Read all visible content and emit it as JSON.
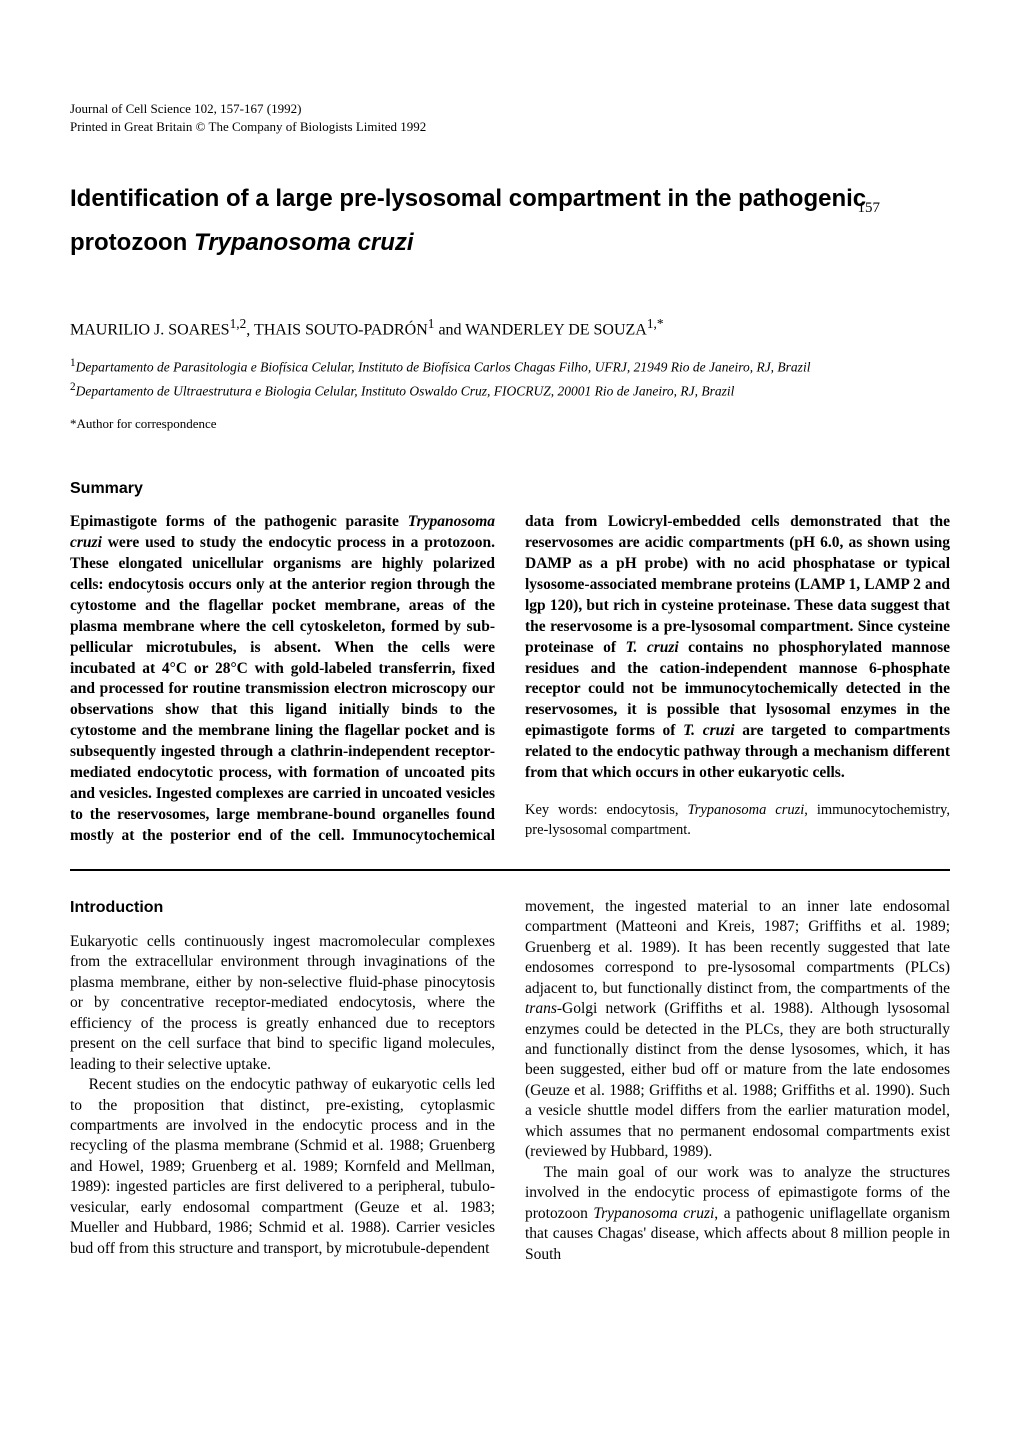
{
  "page_number": "157",
  "meta_line1": "Journal of Cell Science 102, 157-167 (1992)",
  "meta_line2": "Printed in Great Britain © The Company of Biologists Limited 1992",
  "title_pre": "Identification of a large pre-lysosomal compartment in the pathogenic protozoon ",
  "title_species": "Trypanosoma cruzi",
  "authors": "MAURILIO J. SOARES",
  "author_sup1": "1,2",
  "authors_mid": ", THAIS SOUTO-PADRÓN",
  "author_sup2": "1",
  "authors_join": " and WANDERLEY DE SOUZA",
  "author_sup3": "1,*",
  "affil1_sup": "1",
  "affil1": "Departamento de Parasitologia e Biofísica Celular, Instituto de Biofísica Carlos Chagas Filho, UFRJ, 21949 Rio de Janeiro, RJ, Brazil",
  "affil2_sup": "2",
  "affil2": "Departamento de Ultraestrutura e Biologia Celular, Instituto Oswaldo Cruz, FIOCRUZ, 20001 Rio de Janeiro, RJ, Brazil",
  "corr": "*Author for correspondence",
  "summary_heading": "Summary",
  "summary_p1a": "Epimastigote forms of the pathogenic parasite ",
  "summary_p1_species": "Trypanosoma cruzi",
  "summary_p1b": " were used to study the endocytic process in a protozoon. These elongated unicellular organisms are highly polarized cells: endocytosis occurs only at the anterior region through the cytostome and the flagellar pocket membrane, areas of the plasma membrane where the cell cytoskeleton, formed by sub-pellicular microtubules, is absent. When the cells were incubated at 4°C or 28°C with gold-labeled transferrin, fixed and processed for routine transmission electron microscopy our observations show that this ligand initially binds to the cytostome and the membrane lining the flagellar pocket and is subsequently ingested through a clathrin-independent receptor-mediated endocytotic process, with formation of uncoated pits and vesicles. Ingested complexes are carried in uncoated vesicles to the reservosomes, large membrane-bound organelles found mostly at the posterior end of the cell. Immunocytochemical data from Lowicryl-embedded cells demonstrated that the reservosomes are acidic compartments (pH 6.0, as shown using DAMP as a pH probe) with no acid phosphatase or typical lysosome-associated membrane proteins (LAMP 1, LAMP 2 and lgp 120), but rich in cysteine proteinase. These data suggest that the reservosome is a pre-lysosomal compartment. Since cysteine proteinase of ",
  "summary_p1_species2": "T. cruzi",
  "summary_p1c": " contains no phosphorylated mannose residues and the cation-independent mannose 6-phosphate receptor could not be immunocytochemically detected in the reservosomes, it is possible that lysosomal enzymes in the epimastigote forms of ",
  "summary_p1_species3": "T. cruzi",
  "summary_p1d": " are targeted to compartments related to the endocytic pathway through a mechanism different from that which occurs in other eukaryotic cells.",
  "keywords_label": "Key words: ",
  "keywords_a": "endocytosis, ",
  "keywords_species": "Trypanosoma cruzi",
  "keywords_b": ", immunocytochemistry, pre-lysosomal compartment.",
  "intro_heading": "Introduction",
  "intro_p1": "Eukaryotic cells continuously ingest macromolecular complexes from the extracellular environment through invaginations of the plasma membrane, either by non-selective fluid-phase pinocytosis or by concentrative receptor-mediated endocytosis, where the efficiency of the process is greatly enhanced due to receptors present on the cell surface that bind to specific ligand molecules, leading to their selective uptake.",
  "intro_p2": "Recent studies on the endocytic pathway of eukaryotic cells led to the proposition that distinct, pre-existing, cytoplasmic compartments are involved in the endocytic process and in the recycling of the plasma membrane (Schmid et al. 1988; Gruenberg and Howel, 1989; Gruenberg et al. 1989; Kornfeld and Mellman, 1989): ingested particles are first delivered to a peripheral, tubulo-vesicular, early endosomal compartment (Geuze et al. 1983; Mueller and Hubbard, 1986; Schmid et al. 1988). Carrier vesicles bud off from this structure and transport, by microtubule-dependent",
  "intro_p3a": "movement, the ingested material to an inner late endosomal compartment (Matteoni and Kreis, 1987; Griffiths et al. 1989; Gruenberg et al. 1989). It has been recently suggested that late endosomes correspond to pre-lysosomal compartments (PLCs) adjacent to, but functionally distinct from, the compartments of the ",
  "intro_p3_trans": "trans",
  "intro_p3b": "-Golgi network (Griffiths et al. 1988). Although lysosomal enzymes could be detected in the PLCs, they are both structurally and functionally distinct from the dense lysosomes, which, it has been suggested, either bud off or mature from the late endosomes (Geuze et al. 1988; Griffiths et al. 1988; Griffiths et al. 1990). Such a vesicle shuttle model differs from the earlier maturation model, which assumes that no permanent endosomal compartments exist (reviewed by Hubbard, 1989).",
  "intro_p4a": "The main goal of our work was to analyze the structures involved in the endocytic process of epimastigote forms of the protozoon ",
  "intro_p4_species": "Trypanosoma cruzi",
  "intro_p4b": ", a pathogenic uniflagellate organism that causes Chagas' disease, which affects about 8 million people in South"
}
